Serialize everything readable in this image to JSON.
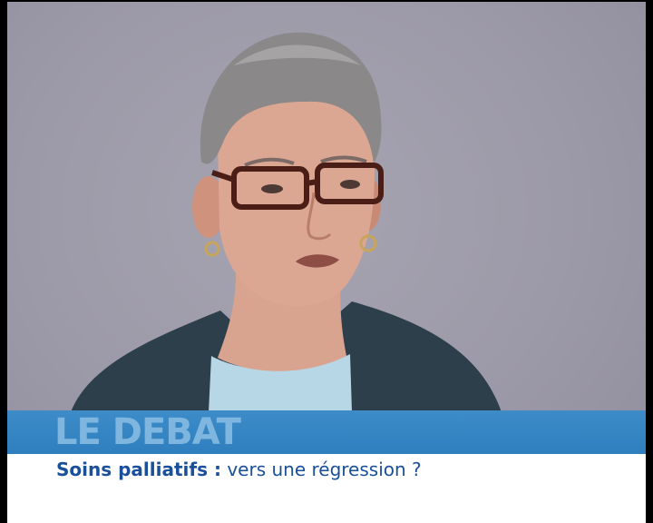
{
  "banner": {
    "title": "LE DEBAT",
    "subtitle_bold": "Soins palliatifs :",
    "subtitle_rest": " vers une régression ?"
  },
  "colors": {
    "background": "#9c99a8",
    "banner_blue": "#2f7fbf",
    "banner_text": "#7fb6e0",
    "subtitle_text": "#1a4f9a"
  }
}
